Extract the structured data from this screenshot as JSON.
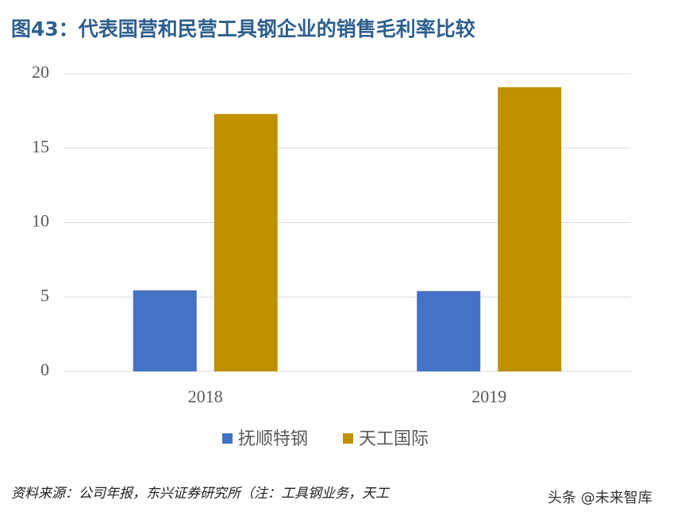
{
  "chart_data": {
    "type": "bar",
    "title": "图43：代表国营和民营工具钢企业的销售毛利率比较",
    "categories": [
      "2018",
      "2019"
    ],
    "series": [
      {
        "name": "抚顺特钢",
        "color": "#4472c4",
        "values": [
          5.45,
          5.4
        ]
      },
      {
        "name": "天工国际",
        "color": "#bf9000",
        "values": [
          17.3,
          19.1
        ]
      }
    ],
    "ylim": [
      0,
      20
    ],
    "yticks": [
      0,
      5,
      10,
      15,
      20
    ],
    "grid": true,
    "legend": "bottom",
    "source": "资料来源：公司年报，东兴证券研究所（注：工具钢业务，天工",
    "watermark": "头条 @未来智库"
  }
}
